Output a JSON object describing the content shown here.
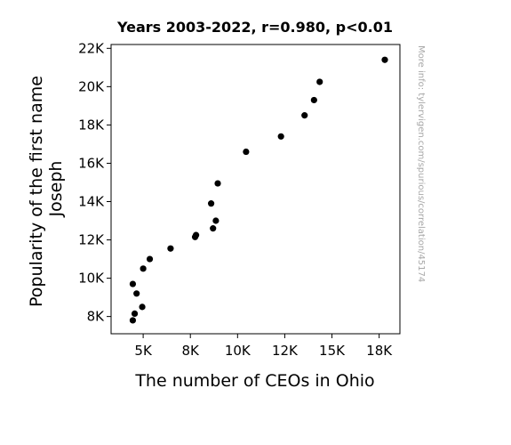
{
  "chart_data": {
    "type": "scatter",
    "title": "Years 2003-2022, r=0.980, p<0.01",
    "xlabel": "The number of CEOs in Ohio",
    "ylabel_lines": [
      "Popularity of the first name",
      "Joseph"
    ],
    "xlim": [
      3300,
      18600
    ],
    "ylim": [
      7100,
      22200
    ],
    "xticks": [
      {
        "value": 5000,
        "label": "5K"
      },
      {
        "value": 7500,
        "label": "8K"
      },
      {
        "value": 10000,
        "label": "10K"
      },
      {
        "value": 12500,
        "label": "12K"
      },
      {
        "value": 15000,
        "label": "15K"
      },
      {
        "value": 17500,
        "label": "18K"
      }
    ],
    "yticks": [
      {
        "value": 8000,
        "label": "8K"
      },
      {
        "value": 10000,
        "label": "10K"
      },
      {
        "value": 12000,
        "label": "12K"
      },
      {
        "value": 14000,
        "label": "14K"
      },
      {
        "value": 16000,
        "label": "16K"
      },
      {
        "value": 18000,
        "label": "18K"
      },
      {
        "value": 20000,
        "label": "20K"
      },
      {
        "value": 22000,
        "label": "22K"
      }
    ],
    "points": [
      {
        "x": 17800,
        "y": 21400
      },
      {
        "x": 14350,
        "y": 20250
      },
      {
        "x": 14050,
        "y": 19300
      },
      {
        "x": 13550,
        "y": 18500
      },
      {
        "x": 12300,
        "y": 17400
      },
      {
        "x": 10450,
        "y": 16600
      },
      {
        "x": 8950,
        "y": 14950
      },
      {
        "x": 8600,
        "y": 13900
      },
      {
        "x": 8850,
        "y": 13000
      },
      {
        "x": 8700,
        "y": 12600
      },
      {
        "x": 7800,
        "y": 12250
      },
      {
        "x": 7750,
        "y": 12150
      },
      {
        "x": 6450,
        "y": 11550
      },
      {
        "x": 5350,
        "y": 11000
      },
      {
        "x": 5000,
        "y": 10500
      },
      {
        "x": 4450,
        "y": 9700
      },
      {
        "x": 4650,
        "y": 9200
      },
      {
        "x": 4950,
        "y": 8500
      },
      {
        "x": 4550,
        "y": 8150
      },
      {
        "x": 4450,
        "y": 7800
      }
    ],
    "marker_color": "#000000",
    "grid": false
  },
  "watermark": "More info: tylervigen.com/spurious/correlation/45174"
}
